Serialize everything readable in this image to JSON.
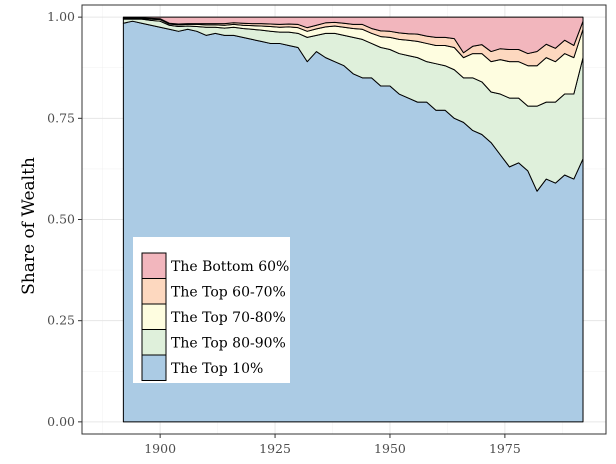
{
  "chart_data": {
    "type": "area",
    "stacked": true,
    "title": "",
    "xlabel": "",
    "ylabel": "Share of Wealth",
    "xlim": [
      1883,
      1997
    ],
    "ylim": [
      -0.03,
      1.03
    ],
    "x_ticks": [
      1900,
      1925,
      1950,
      1975
    ],
    "y_ticks": [
      0.0,
      0.25,
      0.5,
      0.75,
      1.0
    ],
    "x_tick_labels": [
      "1900",
      "1925",
      "1950",
      "1975"
    ],
    "y_tick_labels": [
      "0.00",
      "0.25",
      "0.50",
      "0.75",
      "1.00"
    ],
    "grid": true,
    "legend_position": "inside-bottom-left",
    "legend": [
      {
        "label": "The Bottom 60%",
        "color": "#f2b6bd"
      },
      {
        "label": "The Top 60-70%",
        "color": "#fdd8bf"
      },
      {
        "label": "The Top 70-80%",
        "color": "#fefde0"
      },
      {
        "label": "The Top 80-90%",
        "color": "#dff0db"
      },
      {
        "label": "The Top 10%",
        "color": "#abcbe4"
      }
    ],
    "x": [
      1892,
      1894,
      1896,
      1898,
      1900,
      1902,
      1904,
      1906,
      1908,
      1910,
      1912,
      1914,
      1916,
      1918,
      1920,
      1922,
      1924,
      1926,
      1928,
      1930,
      1932,
      1934,
      1936,
      1938,
      1940,
      1942,
      1944,
      1946,
      1948,
      1950,
      1952,
      1954,
      1956,
      1958,
      1960,
      1962,
      1964,
      1966,
      1968,
      1970,
      1972,
      1974,
      1976,
      1978,
      1980,
      1982,
      1984,
      1986,
      1988,
      1990,
      1992
    ],
    "series": [
      {
        "name": "The Top 10%",
        "values": [
          0.985,
          0.99,
          0.985,
          0.98,
          0.975,
          0.97,
          0.965,
          0.97,
          0.965,
          0.955,
          0.96,
          0.955,
          0.955,
          0.95,
          0.945,
          0.94,
          0.935,
          0.935,
          0.93,
          0.925,
          0.89,
          0.915,
          0.9,
          0.89,
          0.88,
          0.86,
          0.85,
          0.85,
          0.83,
          0.83,
          0.81,
          0.8,
          0.79,
          0.79,
          0.77,
          0.77,
          0.75,
          0.74,
          0.72,
          0.71,
          0.69,
          0.66,
          0.63,
          0.64,
          0.62,
          0.57,
          0.6,
          0.59,
          0.61,
          0.6,
          0.65
        ]
      },
      {
        "name": "The Top 80-90%",
        "values": [
          0.01,
          0.005,
          0.01,
          0.012,
          0.015,
          0.01,
          0.012,
          0.008,
          0.012,
          0.02,
          0.015,
          0.018,
          0.02,
          0.022,
          0.025,
          0.028,
          0.03,
          0.028,
          0.033,
          0.035,
          0.06,
          0.04,
          0.06,
          0.07,
          0.075,
          0.09,
          0.095,
          0.085,
          0.095,
          0.09,
          0.1,
          0.105,
          0.11,
          0.1,
          0.115,
          0.11,
          0.12,
          0.11,
          0.13,
          0.13,
          0.125,
          0.15,
          0.17,
          0.16,
          0.16,
          0.21,
          0.19,
          0.2,
          0.2,
          0.21,
          0.25
        ]
      },
      {
        "name": "The Top 70-80%",
        "values": [
          0.002,
          0.002,
          0.002,
          0.003,
          0.004,
          0.003,
          0.004,
          0.004,
          0.005,
          0.006,
          0.006,
          0.007,
          0.007,
          0.008,
          0.009,
          0.01,
          0.012,
          0.012,
          0.013,
          0.014,
          0.015,
          0.016,
          0.016,
          0.018,
          0.02,
          0.022,
          0.025,
          0.025,
          0.027,
          0.03,
          0.035,
          0.038,
          0.04,
          0.045,
          0.045,
          0.05,
          0.055,
          0.05,
          0.06,
          0.07,
          0.075,
          0.085,
          0.09,
          0.09,
          0.1,
          0.1,
          0.11,
          0.1,
          0.1,
          0.09,
          0.07
        ]
      },
      {
        "name": "The Top 60-70%",
        "values": [
          0.001,
          0.001,
          0.001,
          0.002,
          0.002,
          0.002,
          0.002,
          0.002,
          0.002,
          0.003,
          0.003,
          0.004,
          0.004,
          0.005,
          0.005,
          0.006,
          0.006,
          0.007,
          0.007,
          0.008,
          0.009,
          0.009,
          0.01,
          0.009,
          0.01,
          0.01,
          0.012,
          0.012,
          0.014,
          0.015,
          0.016,
          0.016,
          0.018,
          0.018,
          0.02,
          0.02,
          0.022,
          0.012,
          0.018,
          0.022,
          0.025,
          0.027,
          0.03,
          0.03,
          0.03,
          0.035,
          0.033,
          0.033,
          0.033,
          0.03,
          0.02
        ]
      },
      {
        "name": "The Bottom 60%",
        "values": [
          0.002,
          0.002,
          0.002,
          0.003,
          0.004,
          0.015,
          0.017,
          0.016,
          0.016,
          0.016,
          0.016,
          0.016,
          0.014,
          0.015,
          0.016,
          0.016,
          0.017,
          0.018,
          0.017,
          0.018,
          0.026,
          0.02,
          0.014,
          0.013,
          0.015,
          0.018,
          0.018,
          0.028,
          0.034,
          0.035,
          0.039,
          0.041,
          0.042,
          0.047,
          0.05,
          0.05,
          0.053,
          0.088,
          0.072,
          0.068,
          0.085,
          0.078,
          0.08,
          0.08,
          0.09,
          0.085,
          0.067,
          0.077,
          0.057,
          0.07,
          0.01
        ]
      }
    ]
  }
}
